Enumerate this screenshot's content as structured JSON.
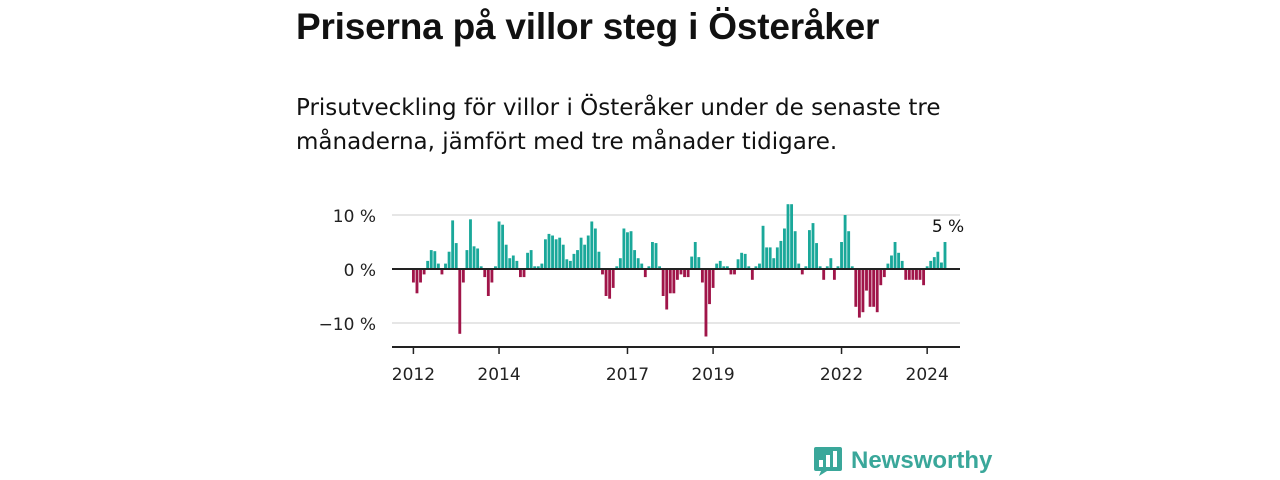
{
  "title": "Priserna på villor steg i Österåker",
  "subtitle": "Prisutveckling för villor i Österåker under de senaste tre månaderna, jämfört med tre månader tidigare.",
  "brand": {
    "name": "Newsworthy",
    "color": "#3aa79a"
  },
  "colors": {
    "positive": "#1aa89a",
    "negative": "#a01549",
    "axis": "#222222",
    "grid": "#dddddd"
  },
  "chart_data": {
    "type": "bar",
    "title": "Priserna på villor steg i Österåker",
    "unit": "%",
    "ylim": [
      -14,
      12
    ],
    "y_ticks": [
      10,
      0,
      -10
    ],
    "y_tick_labels": [
      "10 %",
      "0 %",
      "−10 %"
    ],
    "x_axis_start": 2011.5,
    "x_ticks": [
      2012,
      2014,
      2017,
      2019,
      2022,
      2024
    ],
    "x_tick_labels": [
      "2012",
      "2014",
      "2017",
      "2019",
      "2022",
      "2024"
    ],
    "annotation": {
      "text": "5 %",
      "value": 5,
      "position": "last bar"
    },
    "start": "2012-01",
    "values": [
      -2.5,
      -4.5,
      -2.5,
      -1.0,
      1.5,
      3.5,
      3.3,
      1.0,
      -1.0,
      1.0,
      3.2,
      9.0,
      4.8,
      -12.0,
      -2.5,
      3.5,
      9.2,
      4.2,
      3.8,
      0.5,
      -1.5,
      -5.0,
      -2.5,
      0.5,
      8.8,
      8.2,
      4.5,
      2.0,
      2.5,
      1.5,
      -1.5,
      -1.5,
      3.0,
      3.5,
      0.5,
      0.5,
      1.0,
      5.5,
      6.5,
      6.2,
      5.5,
      5.8,
      4.5,
      1.8,
      1.5,
      2.8,
      3.5,
      5.8,
      4.5,
      6.2,
      8.8,
      7.5,
      3.2,
      -1.0,
      -5.0,
      -5.5,
      -3.5,
      0.5,
      2.0,
      7.5,
      6.8,
      7.0,
      3.5,
      2.0,
      1.0,
      -1.5,
      0.5,
      5.0,
      4.8,
      0.5,
      -5.0,
      -7.5,
      -4.5,
      -4.5,
      -2.0,
      -1.0,
      -1.5,
      -1.5,
      2.3,
      5.0,
      2.2,
      -2.5,
      -12.5,
      -6.5,
      -3.5,
      1.0,
      1.5,
      0.5,
      0.5,
      -1.0,
      -1.0,
      1.8,
      3.0,
      2.8,
      0.5,
      -2.0,
      0.5,
      1.0,
      8.0,
      4.0,
      4.0,
      2.0,
      4.0,
      5.2,
      7.5,
      12.0,
      12.0,
      7.0,
      1.0,
      -1.0,
      0.5,
      7.2,
      8.5,
      4.8,
      0.5,
      -2.0,
      0.5,
      2.0,
      -2.0,
      0.5,
      5.0,
      10.0,
      7.0,
      0.5,
      -7.0,
      -9.0,
      -8.0,
      -4.0,
      -7.0,
      -7.0,
      -8.0,
      -3.0,
      -1.5,
      1.0,
      2.5,
      5.0,
      3.0,
      1.5,
      -2.0,
      -2.0,
      -2.0,
      -2.0,
      -2.0,
      -3.0,
      0.5,
      1.5,
      2.2,
      3.2,
      1.2,
      5.0
    ]
  }
}
